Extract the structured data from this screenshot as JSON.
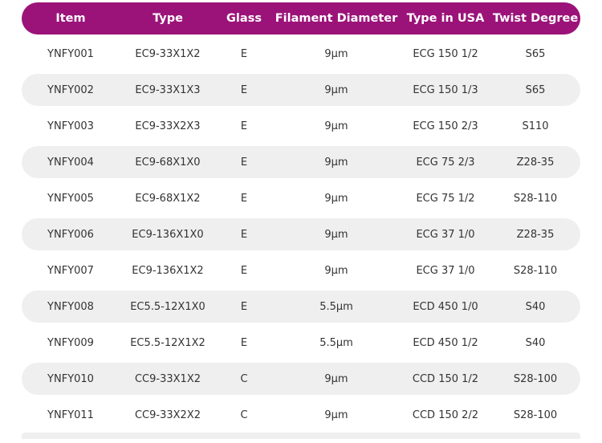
{
  "table": {
    "columns": [
      "Item",
      "Type",
      "Glass",
      "Filament Diameter",
      "Type in USA",
      "Twist Degree"
    ],
    "rows": [
      {
        "item": "YNFY001",
        "type": "EC9-33X1X2",
        "glass": "E",
        "diameter": "9μm",
        "usa": "ECG 150 1/2",
        "twist": "S65"
      },
      {
        "item": "YNFY002",
        "type": "EC9-33X1X3",
        "glass": "E",
        "diameter": "9μm",
        "usa": "ECG 150 1/3",
        "twist": "S65"
      },
      {
        "item": "YNFY003",
        "type": "EC9-33X2X3",
        "glass": "E",
        "diameter": "9μm",
        "usa": "ECG 150 2/3",
        "twist": "S110"
      },
      {
        "item": "YNFY004",
        "type": "EC9-68X1X0",
        "glass": "E",
        "diameter": "9μm",
        "usa": "ECG 75 2/3",
        "twist": "Z28-35"
      },
      {
        "item": "YNFY005",
        "type": "EC9-68X1X2",
        "glass": "E",
        "diameter": "9μm",
        "usa": "ECG 75 1/2",
        "twist": "S28-110"
      },
      {
        "item": "YNFY006",
        "type": "EC9-136X1X0",
        "glass": "E",
        "diameter": "9μm",
        "usa": "ECG 37 1/0",
        "twist": "Z28-35"
      },
      {
        "item": "YNFY007",
        "type": "EC9-136X1X2",
        "glass": "E",
        "diameter": "9μm",
        "usa": "ECG 37 1/0",
        "twist": "S28-110"
      },
      {
        "item": "YNFY008",
        "type": "EC5.5-12X1X0",
        "glass": "E",
        "diameter": "5.5μm",
        "usa": "ECD 450 1/0",
        "twist": "S40"
      },
      {
        "item": "YNFY009",
        "type": "EC5.5-12X1X2",
        "glass": "E",
        "diameter": "5.5μm",
        "usa": "ECD 450 1/2",
        "twist": "S40"
      },
      {
        "item": "YNFY010",
        "type": "CC9-33X1X2",
        "glass": "C",
        "diameter": "9μm",
        "usa": "CCD 150 1/2",
        "twist": "S28-100"
      },
      {
        "item": "YNFY011",
        "type": "CC9-33X2X2",
        "glass": "C",
        "diameter": "9μm",
        "usa": "CCD 150 2/2",
        "twist": "S28-100"
      }
    ]
  },
  "colors": {
    "header_bg": "#9b1379",
    "header_text": "#ffffff",
    "stripe_bg": "#efefef",
    "body_text": "#333333"
  }
}
